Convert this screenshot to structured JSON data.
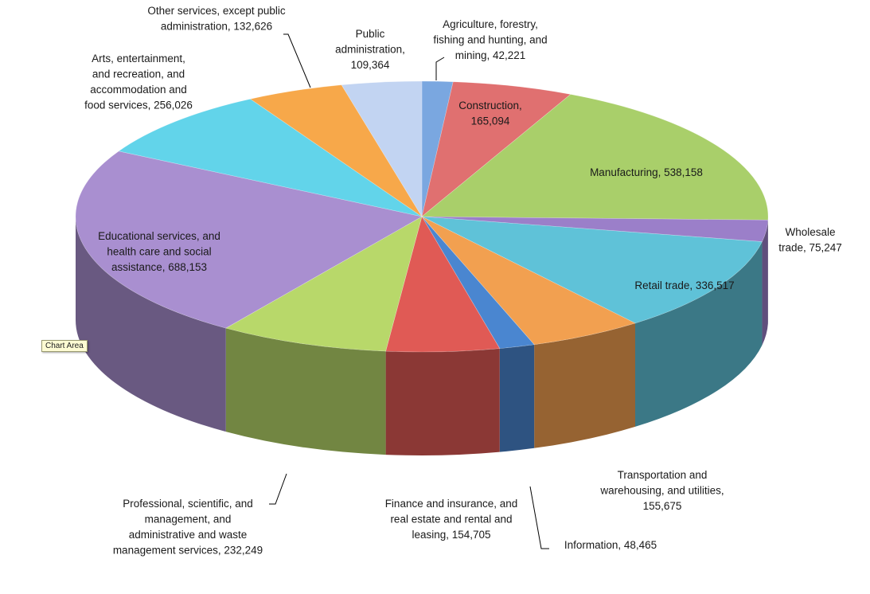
{
  "chart_data": {
    "type": "pie",
    "style": "3d-exploded-pie",
    "title": "",
    "slices": [
      {
        "label": "Agriculture, forestry, fishing and hunting, and mining, 42,221",
        "category": "Agriculture, forestry, fishing and hunting, and mining",
        "value": 42221,
        "color": "#7aa7e0"
      },
      {
        "label": "Construction, 165,094",
        "category": "Construction",
        "value": 165094,
        "color": "#e07070"
      },
      {
        "label": "Manufacturing, 538,158",
        "category": "Manufacturing",
        "value": 538158,
        "color": "#a9cf6a"
      },
      {
        "label": "Wholesale trade, 75,247",
        "category": "Wholesale trade",
        "value": 75247,
        "color": "#9b7fc9"
      },
      {
        "label": "Retail trade, 336,517",
        "category": "Retail trade",
        "value": 336517,
        "color": "#5fc2d8"
      },
      {
        "label": "Transportation and warehousing, and utilities, 155,675",
        "category": "Transportation and warehousing, and utilities",
        "value": 155675,
        "color": "#f2a050"
      },
      {
        "label": "Information, 48,465",
        "category": "Information",
        "value": 48465,
        "color": "#4a86d0"
      },
      {
        "label": "Finance and insurance, and real estate and rental and leasing, 154,705",
        "category": "Finance and insurance, and real estate and rental and leasing",
        "value": 154705,
        "color": "#e05a55"
      },
      {
        "label": "Professional, scientific, and management, and administrative and waste management services, 232,249",
        "category": "Professional, scientific, and management, and administrative and waste management services",
        "value": 232249,
        "color": "#b8d86a"
      },
      {
        "label": "Educational services, and health care and social assistance, 688,153",
        "category": "Educational services, and health care and social assistance",
        "value": 688153,
        "color": "#a98fd0"
      },
      {
        "label": "Arts, entertainment, and recreation, and accommodation and food services, 256,026",
        "category": "Arts, entertainment, and recreation, and accommodation and food services",
        "value": 256026,
        "color": "#62d4ea"
      },
      {
        "label": "Other services, except public administration, 132,626",
        "category": "Other services, except public administration",
        "value": 132626,
        "color": "#f7a84a"
      },
      {
        "label": "Public administration, 109,364",
        "category": "Public administration",
        "value": 109364,
        "color": "#c2d4f2"
      }
    ],
    "labels_text": [
      [
        "Agriculture, forestry,",
        "fishing and hunting, and",
        "mining, 42,221"
      ],
      [
        "Construction,",
        "165,094"
      ],
      [
        "Manufacturing, 538,158"
      ],
      [
        "Wholesale",
        "trade, 75,247"
      ],
      [
        "Retail trade, 336,517"
      ],
      [
        "Transportation and",
        "warehousing, and utilities,",
        "155,675"
      ],
      [
        "Information, 48,465"
      ],
      [
        "Finance and insurance, and",
        "real estate and rental and",
        "leasing, 154,705"
      ],
      [
        "Professional, scientific, and",
        "management, and",
        "administrative and waste",
        "management services, 232,249"
      ],
      [
        "Educational services, and",
        "health care and social",
        "assistance, 688,153"
      ],
      [
        "Arts, entertainment,",
        "and recreation, and",
        "accommodation and",
        "food services, 256,026"
      ],
      [
        "Other services, except public",
        "administration, 132,626"
      ],
      [
        "Public",
        "administration,",
        "109,364"
      ]
    ]
  },
  "tooltip": {
    "text": "Chart Area"
  }
}
